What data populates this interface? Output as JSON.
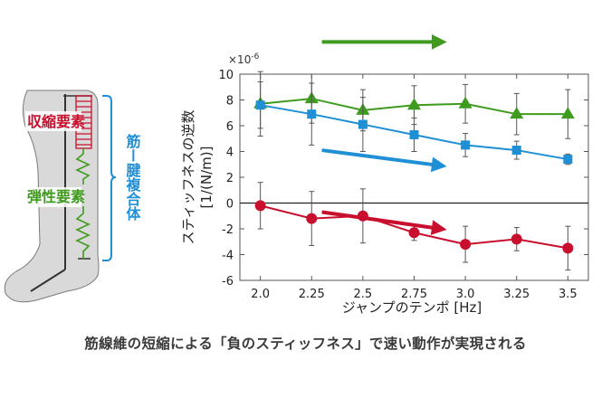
{
  "diagram": {
    "label_contractile": "収縮要素",
    "label_elastic": "弾性要素",
    "label_complex": "筋ー腱複合体",
    "colors": {
      "contractile": "#c8102e",
      "elastic": "#3f9b1e",
      "complex": "#1f8fd6"
    }
  },
  "chart_data": {
    "type": "line",
    "xlabel": "ジャンプのテンポ [Hz]",
    "ylabel_line1": "スティッフネスの逆数",
    "ylabel_line2": "[1/(N/m)]",
    "y_exponent": "×10",
    "y_exponent_power": "-6",
    "x": [
      2.0,
      2.25,
      2.5,
      2.75,
      3.0,
      3.25,
      3.5
    ],
    "x_ticks": [
      "2.0",
      "2.25",
      "2.5",
      "2.75",
      "3.0",
      "3.25",
      "3.5"
    ],
    "y_ticks": [
      -6,
      -4,
      -2,
      0,
      2,
      4,
      6,
      8,
      10
    ],
    "xlim": [
      1.9,
      3.6
    ],
    "ylim": [
      -6,
      10
    ],
    "series": [
      {
        "marker": "triangle",
        "color": "#3f9b1e",
        "values": [
          7.7,
          8.1,
          7.2,
          7.6,
          7.7,
          6.9,
          6.9
        ],
        "err": [
          2.5,
          1.9,
          1.6,
          1.5,
          1.5,
          1.6,
          1.9
        ]
      },
      {
        "marker": "square",
        "color": "#1f8fd6",
        "values": [
          7.6,
          6.9,
          6.1,
          5.3,
          4.5,
          4.1,
          3.4
        ],
        "err": [
          1.8,
          2.4,
          2.1,
          1.3,
          0.9,
          0.7,
          0.4
        ]
      },
      {
        "marker": "circle",
        "color": "#c8102e",
        "values": [
          -0.2,
          -1.2,
          -1.0,
          -2.3,
          -3.2,
          -2.8,
          -3.5
        ],
        "err": [
          1.8,
          2.1,
          2.1,
          0.6,
          1.4,
          0.9,
          1.7
        ]
      }
    ],
    "trend_arrows": [
      {
        "color": "#3f9b1e",
        "from": [
          2.3,
          12.5
        ],
        "to": [
          2.88,
          12.5
        ]
      },
      {
        "color": "#1f8fd6",
        "from": [
          2.3,
          4.1
        ],
        "to": [
          2.88,
          2.9
        ]
      },
      {
        "color": "#c8102e",
        "from": [
          2.3,
          -0.7
        ],
        "to": [
          2.88,
          -2.0
        ]
      }
    ]
  },
  "caption": "筋線維の短縮による「負のスティッフネス」で速い動作が実現される"
}
